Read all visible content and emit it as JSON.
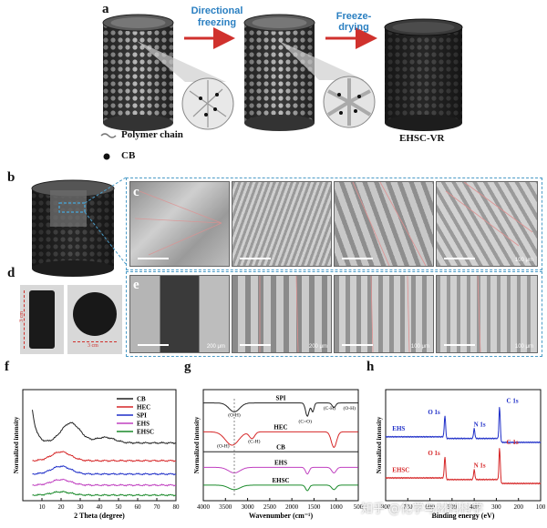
{
  "panel_a": {
    "label": "a",
    "step1": "Directional freezing",
    "step2": "Freeze-drying",
    "legend_polymer": "Polymer chain",
    "legend_cb": "CB",
    "product": "EHSC-VR",
    "colors": {
      "arrow": "#d0312d",
      "step_text": "#2a7fc1"
    }
  },
  "panel_b": {
    "label": "b"
  },
  "panel_c": {
    "label": "c",
    "scale_labels": [
      "",
      "",
      "",
      "100 μm"
    ]
  },
  "panel_d": {
    "label": "d",
    "height_label": "3 cm",
    "width_label": "3 cm"
  },
  "panel_e": {
    "label": "e",
    "scale_labels": [
      "200 μm",
      "200 μm",
      "100 μm",
      "100 μm"
    ]
  },
  "panel_f": {
    "label": "f"
  },
  "panel_g": {
    "label": "g"
  },
  "panel_h": {
    "label": "h"
  },
  "watermark": "知乎 @化学与材料科学",
  "chart_data": [
    {
      "type": "line",
      "id": "f",
      "xlabel": "2 Theta (degree)",
      "ylabel": "Normalized intensity",
      "xlim": [
        0,
        80
      ],
      "xticks": [
        10,
        20,
        30,
        40,
        50,
        60,
        70,
        80
      ],
      "legend": [
        "CB",
        "HEC",
        "SPI",
        "EHS",
        "EHSC"
      ],
      "series": [
        {
          "name": "CB",
          "color": "#222222",
          "offset": 0.52,
          "peaks": [
            [
              25,
              0.18
            ],
            [
              43,
              0.05
            ]
          ],
          "start_spike": 0.3
        },
        {
          "name": "HEC",
          "color": "#d62728",
          "offset": 0.36,
          "peaks": [
            [
              20,
              0.08
            ]
          ]
        },
        {
          "name": "SPI",
          "color": "#1f2fc8",
          "offset": 0.24,
          "peaks": [
            [
              20,
              0.07
            ]
          ]
        },
        {
          "name": "EHS",
          "color": "#c040c0",
          "offset": 0.14,
          "peaks": [
            [
              20,
              0.05
            ]
          ]
        },
        {
          "name": "EHSC",
          "color": "#1a8a2a",
          "offset": 0.05,
          "peaks": [
            [
              20,
              0.03
            ]
          ]
        }
      ]
    },
    {
      "type": "line",
      "id": "g",
      "xlabel": "Wavenumber (cm⁻¹)",
      "ylabel": "Normalized intensity",
      "xlim": [
        4000,
        500
      ],
      "xticks": [
        4000,
        3500,
        3000,
        2500,
        2000,
        1500,
        1000,
        500
      ],
      "series": [
        {
          "name": "SPI",
          "color": "#222222",
          "offset": 0.88,
          "annotations": [
            "(O-H)",
            "(C=O)",
            "(C-H)",
            "(O-H)"
          ]
        },
        {
          "name": "HEC",
          "color": "#d62728",
          "offset": 0.62,
          "annotations": [
            "(O-H)",
            "(C-H)"
          ]
        },
        {
          "name": "CB",
          "color": "#222222",
          "offset": 0.44
        },
        {
          "name": "EHS",
          "color": "#c040c0",
          "offset": 0.3
        },
        {
          "name": "EHSC",
          "color": "#1a8a2a",
          "offset": 0.14
        }
      ]
    },
    {
      "type": "line",
      "id": "h",
      "xlabel": "Binding energy (eV)",
      "ylabel": "Normalized intensity",
      "xlim": [
        800,
        100
      ],
      "xticks": [
        800,
        700,
        600,
        500,
        400,
        300,
        200,
        100
      ],
      "series": [
        {
          "name": "EHS",
          "color": "#1f2fc8",
          "offset": 0.55,
          "peaks": [
            [
              532,
              "O 1s"
            ],
            [
              400,
              "N 1s"
            ],
            [
              285,
              "C 1s"
            ]
          ]
        },
        {
          "name": "EHSC",
          "color": "#d62728",
          "offset": 0.18,
          "peaks": [
            [
              532,
              "O 1s"
            ],
            [
              400,
              "N 1s"
            ],
            [
              285,
              "C 1s"
            ]
          ]
        }
      ]
    }
  ]
}
